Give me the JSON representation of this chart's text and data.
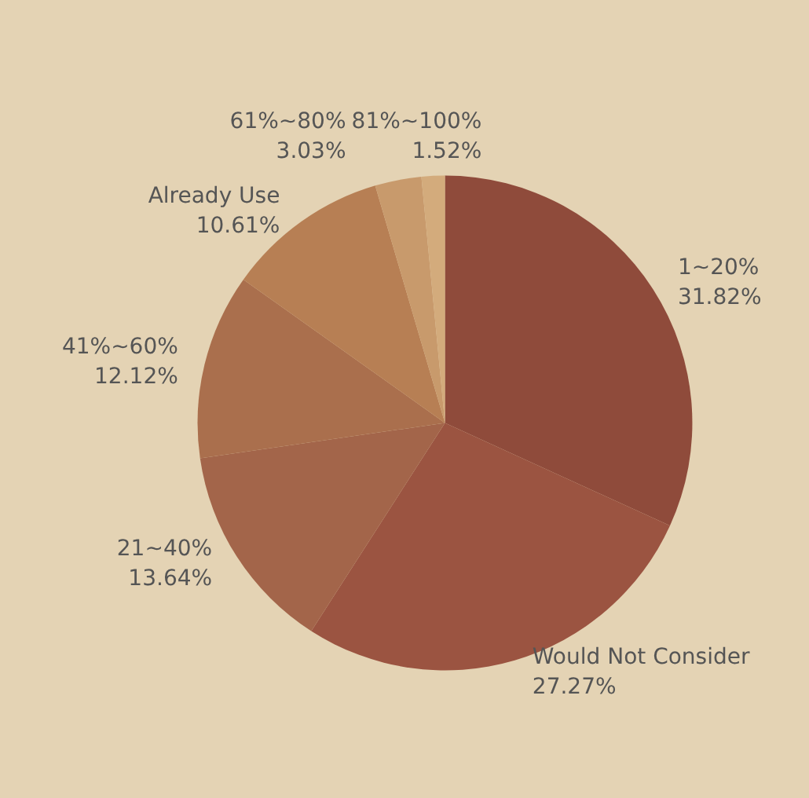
{
  "chart_data": {
    "type": "pie",
    "categories": [
      "1~20%",
      "Would Not Consider",
      "21~40%",
      "41%~60%",
      "Already Use",
      "61%~80%",
      "81%~100%"
    ],
    "values": [
      31.82,
      27.27,
      13.64,
      12.12,
      10.61,
      3.03,
      1.52
    ],
    "value_labels": [
      "31.82%",
      "27.27%",
      "13.64%",
      "12.12%",
      "10.61%",
      "3.03%",
      "1.52%"
    ],
    "colors": [
      "#8f4b3b",
      "#9b5441",
      "#a3654a",
      "#aa6f4d",
      "#b77f54",
      "#c89a6c",
      "#d3ab7c"
    ],
    "legend": false
  }
}
